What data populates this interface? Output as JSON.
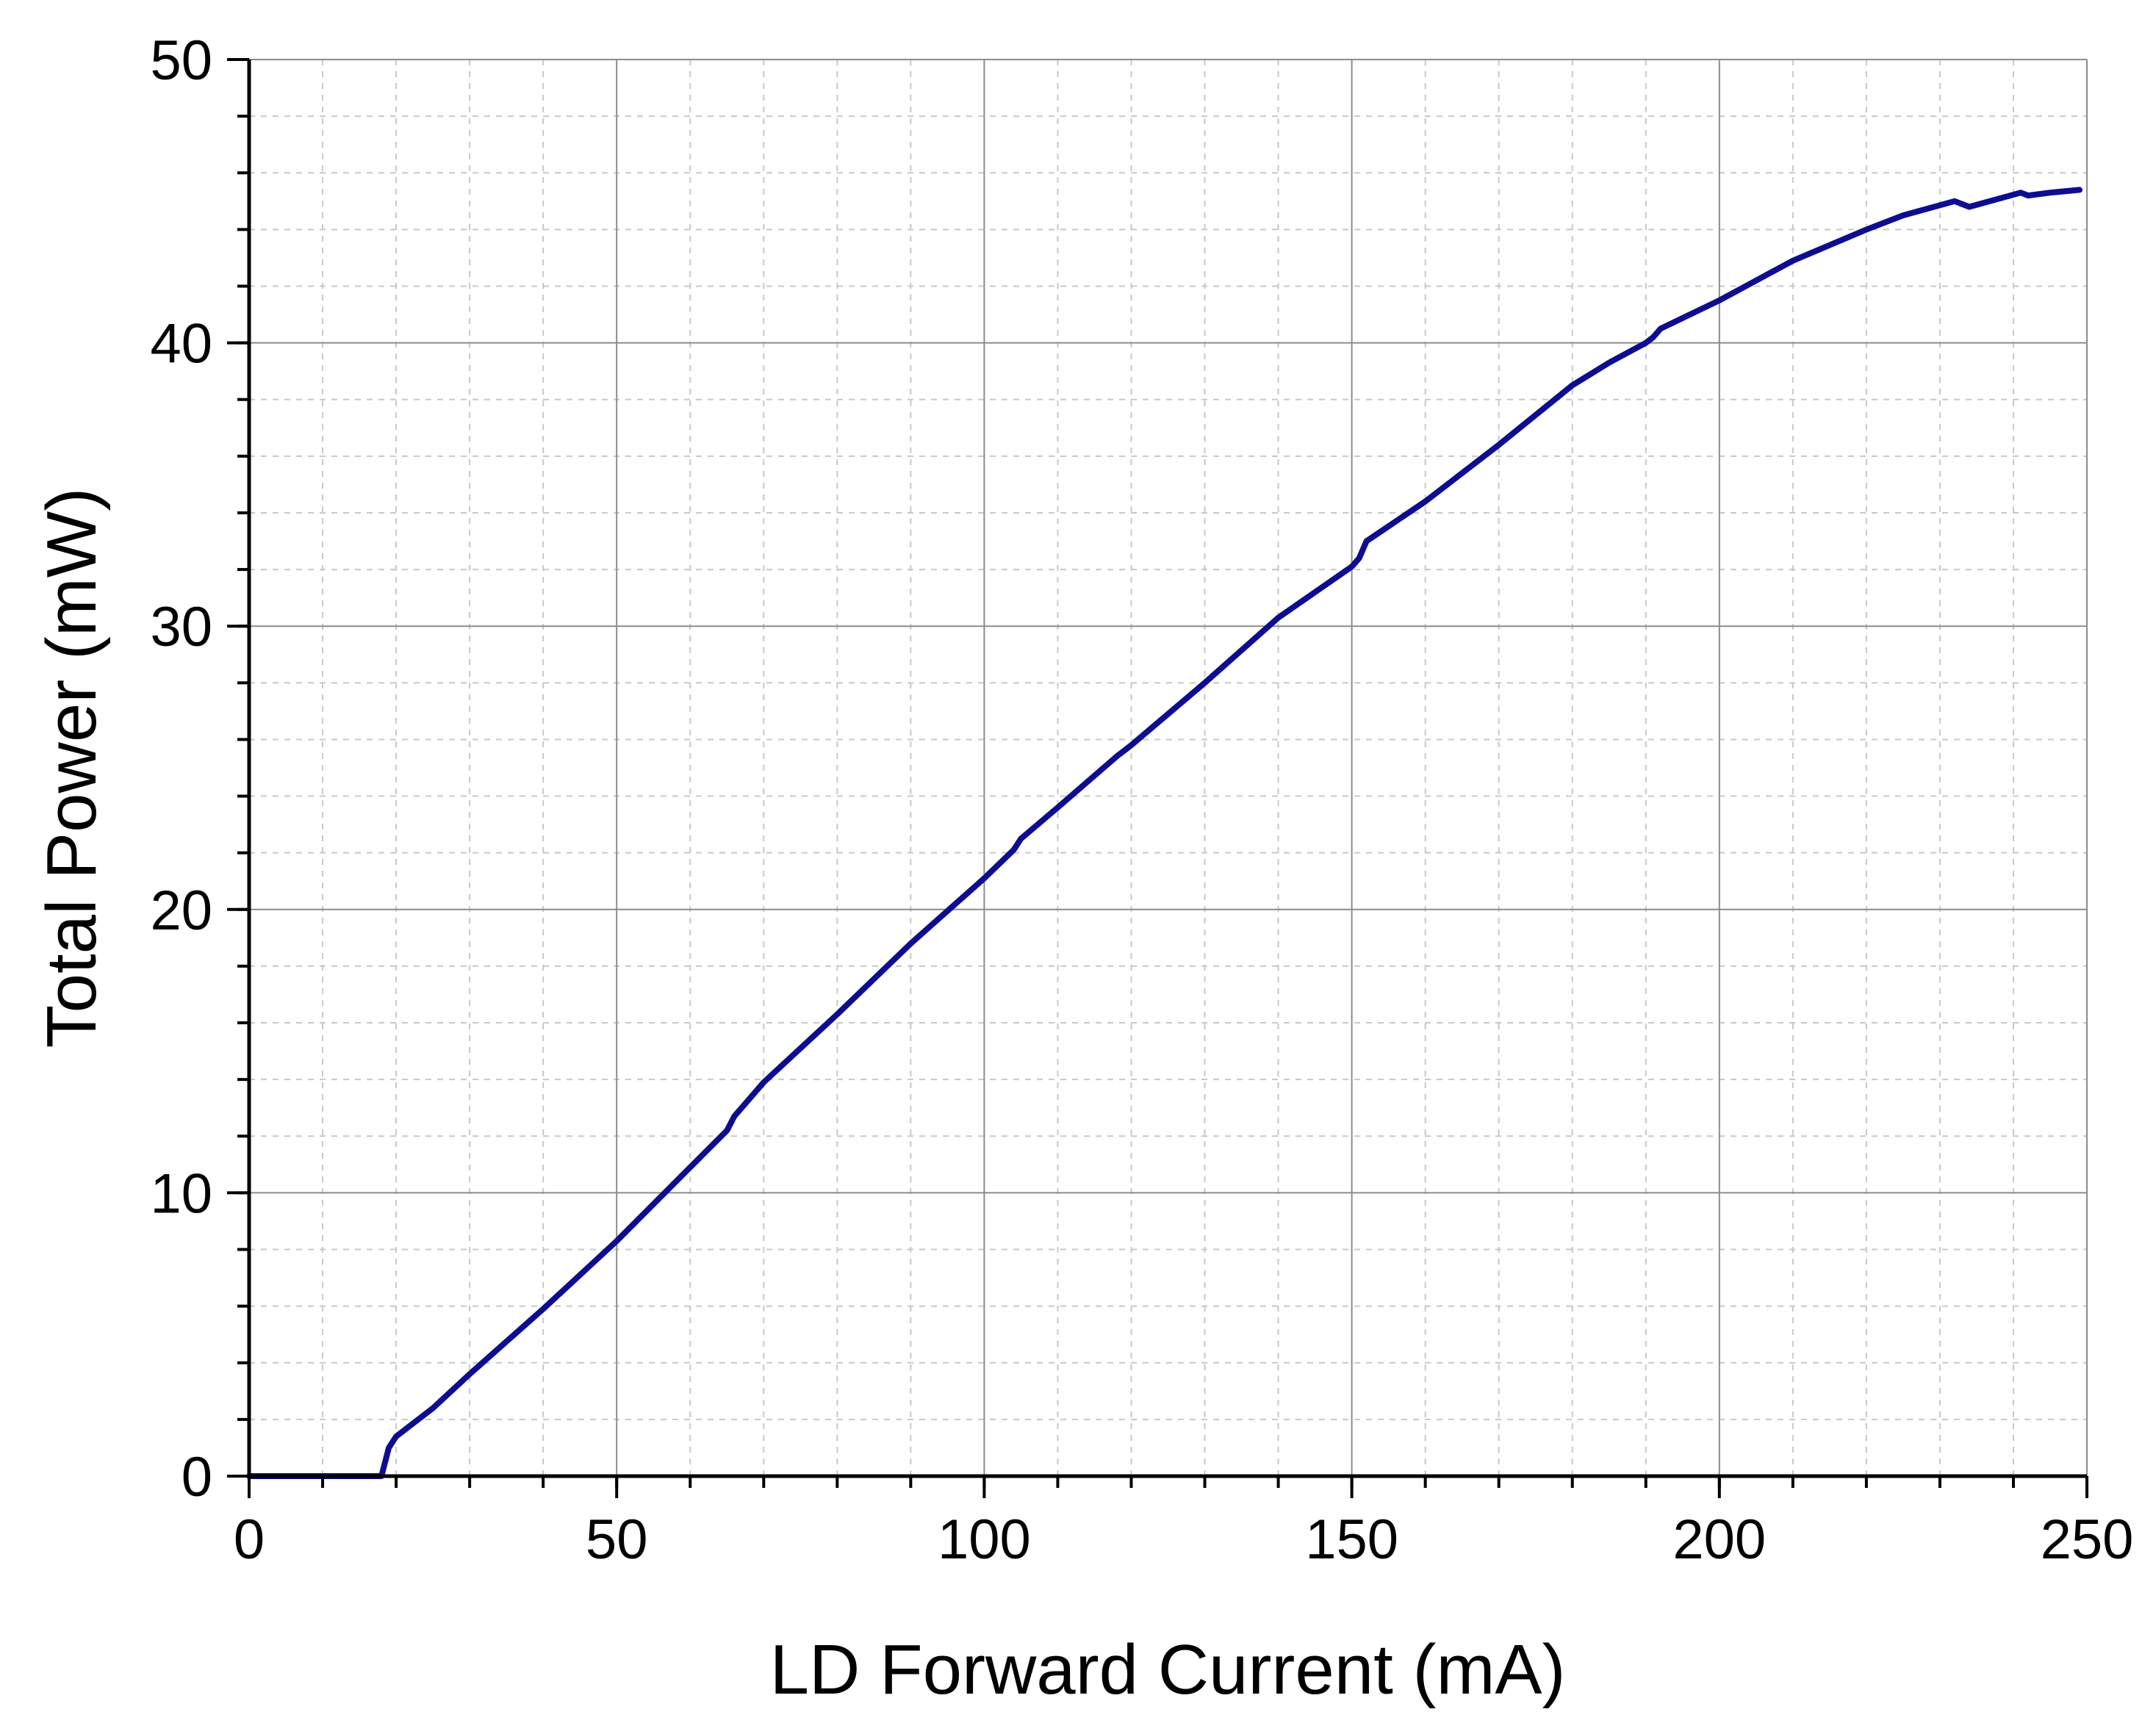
{
  "chart_data": {
    "type": "line",
    "title": "",
    "xlabel": "LD Forward Current (mA)",
    "ylabel": "Total Power (mW)",
    "xlim": [
      0,
      250
    ],
    "ylim": [
      0,
      50
    ],
    "x_ticks": [
      "0",
      "50",
      "100",
      "150",
      "200",
      "250"
    ],
    "y_ticks": [
      "0",
      "10",
      "20",
      "30",
      "40",
      "50"
    ],
    "x_minor_step": 10,
    "y_minor_step": 2,
    "grid": true,
    "legend": "none",
    "series": [
      {
        "name": "Total Power",
        "color": "#0d0d91",
        "x": [
          0,
          18,
          19,
          20,
          25,
          30,
          40,
          50,
          60,
          65,
          66,
          70,
          80,
          90,
          100,
          104,
          105,
          110,
          118,
          120,
          130,
          140,
          145,
          150,
          151,
          152,
          160,
          170,
          180,
          185,
          190,
          191,
          192,
          200,
          210,
          220,
          225,
          232,
          234,
          241,
          242,
          245,
          249
        ],
        "y": [
          0,
          0,
          1.0,
          1.4,
          2.4,
          3.6,
          5.9,
          8.3,
          10.9,
          12.2,
          12.7,
          13.9,
          16.3,
          18.8,
          21.1,
          22.1,
          22.5,
          23.6,
          25.4,
          25.8,
          28.0,
          30.3,
          31.2,
          32.1,
          32.4,
          33.0,
          34.4,
          36.4,
          38.5,
          39.3,
          40.0,
          40.2,
          40.5,
          41.5,
          42.9,
          44.0,
          44.5,
          45.0,
          44.8,
          45.3,
          45.2,
          45.3,
          45.4
        ]
      }
    ]
  }
}
